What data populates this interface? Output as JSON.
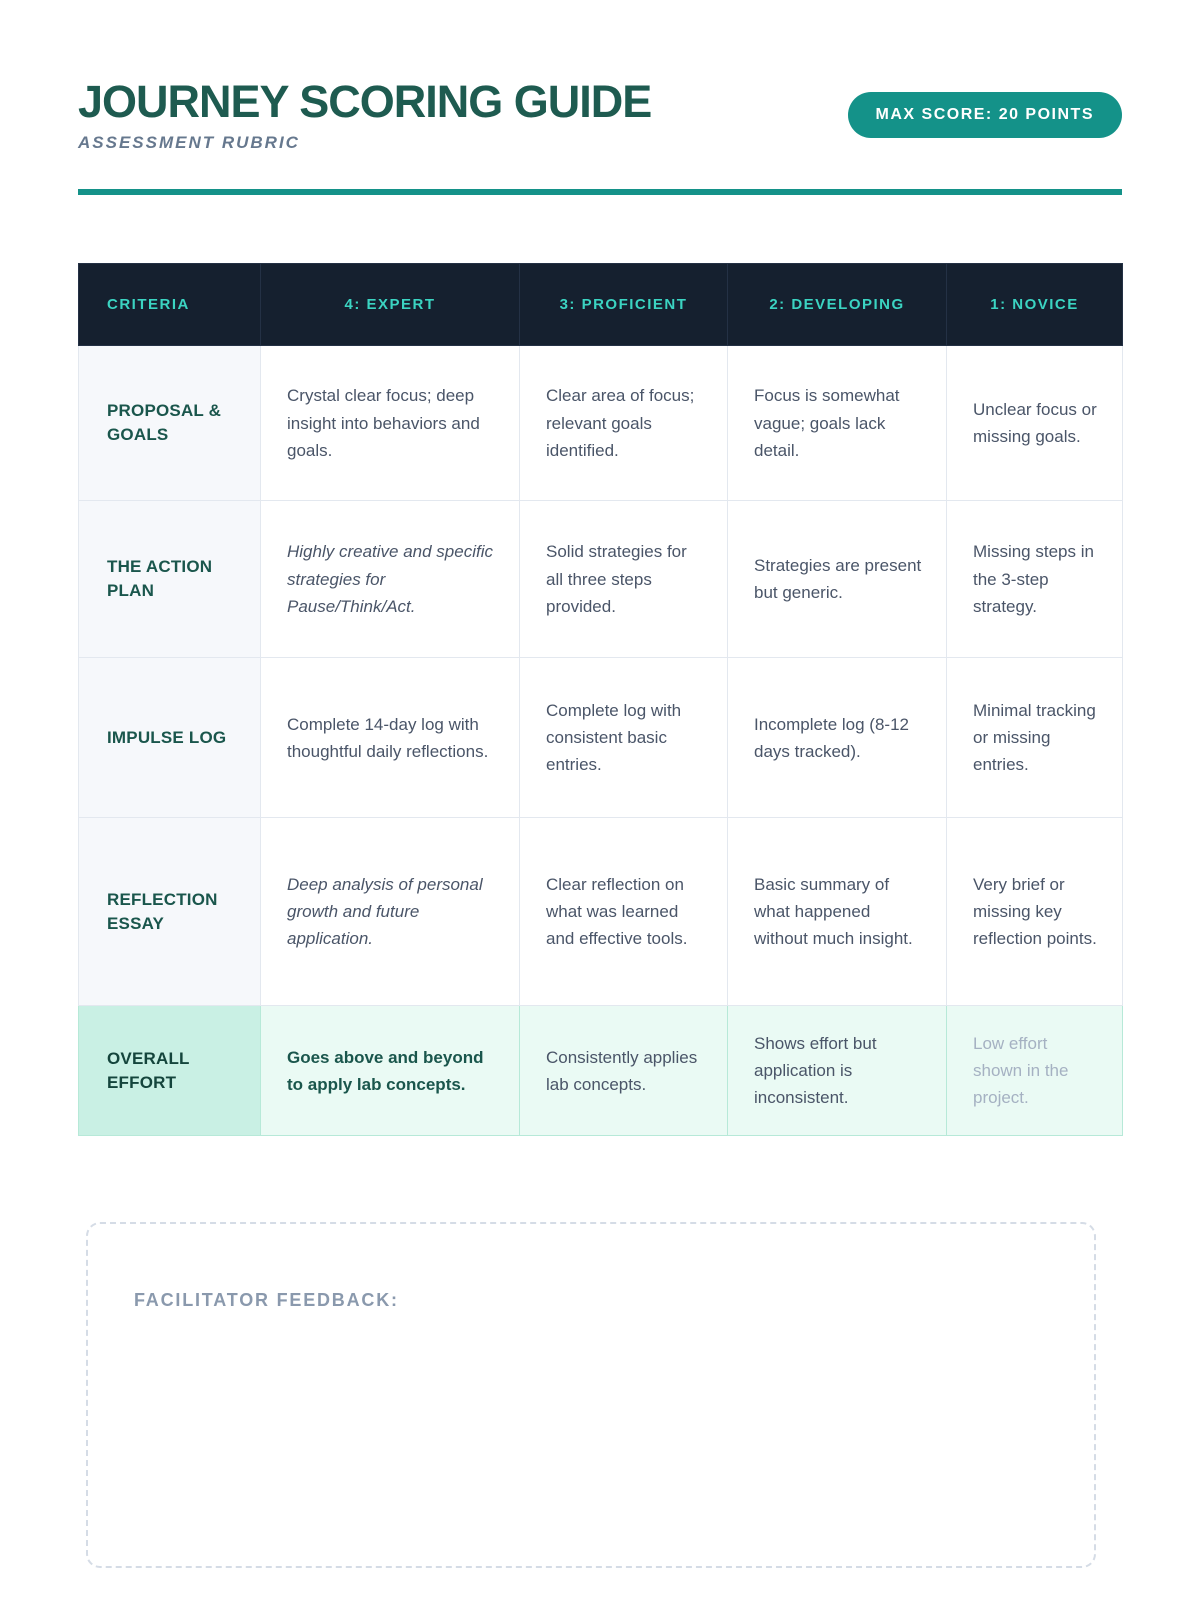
{
  "header": {
    "title": "JOURNEY SCORING GUIDE",
    "subtitle": "ASSESSMENT RUBRIC",
    "badge": "MAX SCORE: 20 POINTS"
  },
  "colors": {
    "title_teal": "#1e5b50",
    "accent_teal": "#149289",
    "table_header_bg": "#15202f",
    "table_header_text": "#3bd4c2",
    "criteria_text": "#1a564c",
    "body_text": "#4a5568",
    "highlight_row_bg": "#eafaf4",
    "highlight_label_bg": "#c9f0e4",
    "muted_text": "#a5b1c2",
    "dashed_border": "#d5dce6"
  },
  "table": {
    "headers": [
      "CRITERIA",
      "4: EXPERT",
      "3: PROFICIENT",
      "2: DEVELOPING",
      "1: NOVICE"
    ],
    "rows": [
      {
        "criteria": "PROPOSAL & GOALS",
        "cells": [
          "Crystal clear focus; deep insight into behaviors and goals.",
          "Clear area of focus; relevant goals identified.",
          "Focus is somewhat vague; goals lack detail.",
          "Unclear focus or missing goals."
        ]
      },
      {
        "criteria": "THE ACTION PLAN",
        "cells": [
          "Highly creative and specific strategies for Pause/Think/Act.",
          "Solid strategies for all three steps provided.",
          "Strategies are present but generic.",
          "Missing steps in the 3-step strategy."
        ]
      },
      {
        "criteria": "IMPULSE LOG",
        "cells": [
          "Complete 14-day log with thoughtful daily reflections.",
          "Complete log with consistent basic entries.",
          "Incomplete log (8-12 days tracked).",
          "Minimal tracking or missing entries."
        ]
      },
      {
        "criteria": "REFLECTION ESSAY",
        "cells": [
          "Deep analysis of personal growth and future application.",
          "Clear reflection on what was learned and effective tools.",
          "Basic summary of what happened without much insight.",
          "Very brief or missing key reflection points."
        ]
      },
      {
        "criteria": "OVERALL EFFORT",
        "cells": [
          "Goes above and beyond to apply lab concepts.",
          "Consistently applies lab concepts.",
          "Shows effort but application is inconsistent.",
          "Low effort shown in the project."
        ]
      }
    ]
  },
  "feedback": {
    "label": "FACILITATOR FEEDBACK:"
  }
}
